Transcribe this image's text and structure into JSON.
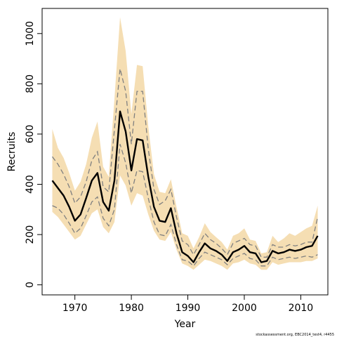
{
  "chart_data": {
    "type": "line",
    "title": "",
    "xlabel": "Year",
    "ylabel": "Recruits",
    "xlim": [
      1964.2,
      2014.8
    ],
    "ylim": [
      -40,
      1100
    ],
    "x_ticks": [
      1970,
      1980,
      1990,
      2000,
      2010
    ],
    "y_ticks": [
      0,
      200,
      400,
      600,
      800,
      1000
    ],
    "grid": false,
    "legend": "none",
    "colors": {
      "band": "#f5deb3",
      "median": "#000000",
      "quantile_dash": "#808080",
      "quantile_solid": "#555555"
    },
    "x": [
      1966,
      1967,
      1968,
      1969,
      1970,
      1971,
      1972,
      1973,
      1974,
      1975,
      1976,
      1977,
      1978,
      1979,
      1980,
      1981,
      1982,
      1983,
      1984,
      1985,
      1986,
      1987,
      1988,
      1989,
      1990,
      1991,
      1992,
      1993,
      1994,
      1995,
      1996,
      1997,
      1998,
      1999,
      2000,
      2001,
      2002,
      2003,
      2004,
      2005,
      2006,
      2007,
      2008,
      2009,
      2010,
      2011,
      2012,
      2013
    ],
    "series": [
      {
        "role": "band_upper",
        "values": [
          620,
          545,
          505,
          445,
          375,
          410,
          480,
          585,
          650,
          470,
          430,
          740,
          1065,
          930,
          680,
          875,
          870,
          630,
          440,
          370,
          365,
          420,
          310,
          205,
          195,
          145,
          190,
          245,
          210,
          190,
          170,
          140,
          195,
          205,
          225,
          180,
          175,
          125,
          130,
          195,
          170,
          185,
          205,
          195,
          210,
          225,
          235,
          315
        ]
      },
      {
        "role": "upper_quantile",
        "values": [
          510,
          480,
          440,
          390,
          325,
          350,
          410,
          495,
          530,
          390,
          370,
          620,
          860,
          770,
          560,
          770,
          770,
          540,
          380,
          320,
          335,
          380,
          270,
          175,
          160,
          120,
          160,
          205,
          180,
          165,
          145,
          120,
          165,
          175,
          185,
          160,
          155,
          110,
          110,
          160,
          150,
          150,
          160,
          155,
          160,
          170,
          170,
          270
        ]
      },
      {
        "role": "median",
        "values": [
          415,
          385,
          355,
          310,
          255,
          280,
          345,
          415,
          445,
          330,
          295,
          415,
          690,
          610,
          455,
          580,
          575,
          430,
          310,
          255,
          250,
          305,
          205,
          130,
          115,
          90,
          130,
          165,
          145,
          135,
          120,
          95,
          130,
          140,
          155,
          130,
          125,
          90,
          95,
          135,
          125,
          130,
          140,
          135,
          140,
          150,
          155,
          195
        ]
      },
      {
        "role": "lower_quantile",
        "values": [
          315,
          305,
          280,
          245,
          205,
          225,
          275,
          330,
          350,
          265,
          235,
          300,
          560,
          485,
          365,
          455,
          450,
          345,
          250,
          200,
          195,
          240,
          160,
          100,
          95,
          75,
          105,
          130,
          120,
          110,
          100,
          80,
          105,
          115,
          125,
          105,
          100,
          75,
          75,
          110,
          100,
          105,
          110,
          105,
          110,
          115,
          110,
          120
        ]
      },
      {
        "role": "band_lower",
        "values": [
          290,
          270,
          240,
          210,
          180,
          195,
          240,
          285,
          300,
          230,
          205,
          250,
          435,
          395,
          315,
          365,
          355,
          280,
          215,
          180,
          175,
          210,
          140,
          85,
          75,
          60,
          80,
          100,
          95,
          85,
          75,
          60,
          85,
          90,
          100,
          85,
          80,
          60,
          60,
          90,
          80,
          85,
          90,
          90,
          90,
          95,
          95,
          105
        ]
      }
    ]
  },
  "footnote": "stockassessment.org, EBC2014_test4, r4455"
}
